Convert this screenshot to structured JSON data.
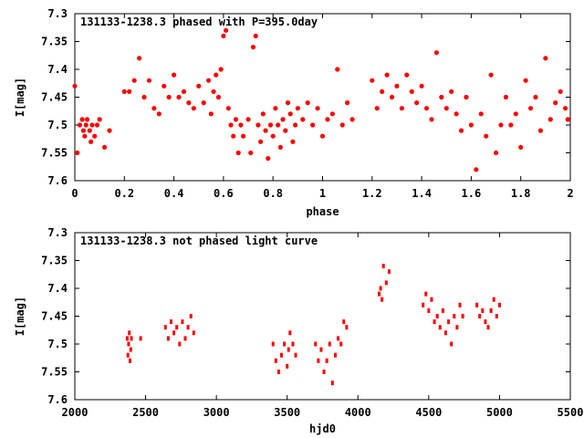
{
  "chart_data": [
    {
      "type": "scatter",
      "title": "131133-1238.3 phased with P=395.0day",
      "xlabel": "phase",
      "ylabel": "I[mag]",
      "xlim": [
        0,
        2
      ],
      "ylim": [
        7.3,
        7.6
      ],
      "y_inverted": true,
      "xticks": [
        "0",
        "0.2",
        "0.4",
        "0.6",
        "0.8",
        "1",
        "1.2",
        "1.4",
        "1.6",
        "1.8",
        "2"
      ],
      "yticks": [
        "7.3",
        "7.35",
        "7.4",
        "7.45",
        "7.5",
        "7.55",
        "7.6"
      ],
      "marker_color": "#ff0000",
      "series": [
        {
          "points": [
            [
              0.0,
              7.43
            ],
            [
              0.01,
              7.55
            ],
            [
              0.02,
              7.5
            ],
            [
              0.03,
              7.49
            ],
            [
              0.035,
              7.51
            ],
            [
              0.04,
              7.52
            ],
            [
              0.045,
              7.5
            ],
            [
              0.05,
              7.49
            ],
            [
              0.06,
              7.51
            ],
            [
              0.065,
              7.53
            ],
            [
              0.07,
              7.5
            ],
            [
              0.08,
              7.52
            ],
            [
              0.09,
              7.5
            ],
            [
              0.1,
              7.49
            ],
            [
              0.12,
              7.54
            ],
            [
              0.14,
              7.51
            ],
            [
              0.2,
              7.44
            ],
            [
              0.22,
              7.44
            ],
            [
              0.24,
              7.42
            ],
            [
              0.26,
              7.38
            ],
            [
              0.28,
              7.45
            ],
            [
              0.3,
              7.42
            ],
            [
              0.32,
              7.47
            ],
            [
              0.34,
              7.48
            ],
            [
              0.36,
              7.43
            ],
            [
              0.38,
              7.45
            ],
            [
              0.4,
              7.41
            ],
            [
              0.42,
              7.45
            ],
            [
              0.44,
              7.44
            ],
            [
              0.46,
              7.46
            ],
            [
              0.48,
              7.47
            ],
            [
              0.5,
              7.43
            ],
            [
              0.52,
              7.46
            ],
            [
              0.54,
              7.42
            ],
            [
              0.55,
              7.48
            ],
            [
              0.56,
              7.44
            ],
            [
              0.57,
              7.41
            ],
            [
              0.58,
              7.45
            ],
            [
              0.59,
              7.4
            ],
            [
              0.6,
              7.34
            ],
            [
              0.61,
              7.33
            ],
            [
              0.62,
              7.47
            ],
            [
              0.63,
              7.5
            ],
            [
              0.64,
              7.52
            ],
            [
              0.65,
              7.49
            ],
            [
              0.66,
              7.55
            ],
            [
              0.67,
              7.5
            ],
            [
              0.68,
              7.52
            ],
            [
              0.7,
              7.49
            ],
            [
              0.71,
              7.55
            ],
            [
              0.72,
              7.36
            ],
            [
              0.73,
              7.34
            ],
            [
              0.74,
              7.5
            ],
            [
              0.75,
              7.53
            ],
            [
              0.76,
              7.48
            ],
            [
              0.77,
              7.51
            ],
            [
              0.78,
              7.56
            ],
            [
              0.79,
              7.5
            ],
            [
              0.8,
              7.52
            ],
            [
              0.81,
              7.47
            ],
            [
              0.82,
              7.5
            ],
            [
              0.83,
              7.54
            ],
            [
              0.84,
              7.49
            ],
            [
              0.85,
              7.51
            ],
            [
              0.86,
              7.46
            ],
            [
              0.87,
              7.48
            ],
            [
              0.88,
              7.53
            ],
            [
              0.89,
              7.5
            ],
            [
              0.9,
              7.47
            ],
            [
              0.92,
              7.49
            ],
            [
              0.94,
              7.46
            ],
            [
              0.96,
              7.5
            ],
            [
              0.98,
              7.47
            ],
            [
              1.0,
              7.52
            ],
            [
              1.02,
              7.49
            ],
            [
              1.04,
              7.48
            ],
            [
              1.06,
              7.4
            ],
            [
              1.08,
              7.5
            ],
            [
              1.1,
              7.46
            ],
            [
              1.12,
              7.49
            ],
            [
              1.2,
              7.42
            ],
            [
              1.22,
              7.47
            ],
            [
              1.24,
              7.44
            ],
            [
              1.26,
              7.41
            ],
            [
              1.28,
              7.45
            ],
            [
              1.3,
              7.43
            ],
            [
              1.32,
              7.47
            ],
            [
              1.34,
              7.41
            ],
            [
              1.36,
              7.44
            ],
            [
              1.38,
              7.46
            ],
            [
              1.4,
              7.43
            ],
            [
              1.42,
              7.47
            ],
            [
              1.44,
              7.49
            ],
            [
              1.46,
              7.37
            ],
            [
              1.48,
              7.45
            ],
            [
              1.5,
              7.47
            ],
            [
              1.52,
              7.44
            ],
            [
              1.54,
              7.48
            ],
            [
              1.56,
              7.51
            ],
            [
              1.58,
              7.45
            ],
            [
              1.6,
              7.5
            ],
            [
              1.62,
              7.58
            ],
            [
              1.64,
              7.48
            ],
            [
              1.66,
              7.52
            ],
            [
              1.68,
              7.41
            ],
            [
              1.7,
              7.55
            ],
            [
              1.72,
              7.5
            ],
            [
              1.74,
              7.45
            ],
            [
              1.76,
              7.5
            ],
            [
              1.78,
              7.48
            ],
            [
              1.8,
              7.54
            ],
            [
              1.82,
              7.42
            ],
            [
              1.84,
              7.47
            ],
            [
              1.86,
              7.45
            ],
            [
              1.88,
              7.51
            ],
            [
              1.9,
              7.38
            ],
            [
              1.92,
              7.49
            ],
            [
              1.94,
              7.46
            ],
            [
              1.96,
              7.44
            ],
            [
              1.98,
              7.47
            ],
            [
              1.99,
              7.49
            ]
          ]
        }
      ]
    },
    {
      "type": "scatter",
      "title": "131133-1238.3 not phased light curve",
      "xlabel": "hjd0",
      "ylabel": "I[mag]",
      "xlim": [
        2000,
        5500
      ],
      "ylim": [
        7.3,
        7.6
      ],
      "y_inverted": true,
      "xticks": [
        "2000",
        "2500",
        "3000",
        "3500",
        "4000",
        "4500",
        "5000",
        "5500"
      ],
      "yticks": [
        "7.3",
        "7.35",
        "7.4",
        "7.45",
        "7.5",
        "7.55",
        "7.6"
      ],
      "marker_color": "#ff0000",
      "series": [
        {
          "points": [
            [
              2370,
              7.49
            ],
            [
              2375,
              7.52
            ],
            [
              2380,
              7.5
            ],
            [
              2385,
              7.48
            ],
            [
              2390,
              7.53
            ],
            [
              2395,
              7.51
            ],
            [
              2400,
              7.49
            ],
            [
              2465,
              7.49
            ],
            [
              2640,
              7.47
            ],
            [
              2660,
              7.49
            ],
            [
              2680,
              7.46
            ],
            [
              2700,
              7.48
            ],
            [
              2720,
              7.47
            ],
            [
              2740,
              7.5
            ],
            [
              2760,
              7.46
            ],
            [
              2780,
              7.49
            ],
            [
              2800,
              7.47
            ],
            [
              2820,
              7.45
            ],
            [
              2840,
              7.48
            ],
            [
              3400,
              7.5
            ],
            [
              3420,
              7.53
            ],
            [
              3440,
              7.55
            ],
            [
              3460,
              7.52
            ],
            [
              3480,
              7.5
            ],
            [
              3500,
              7.54
            ],
            [
              3510,
              7.51
            ],
            [
              3520,
              7.48
            ],
            [
              3540,
              7.5
            ],
            [
              3560,
              7.52
            ],
            [
              3700,
              7.5
            ],
            [
              3720,
              7.53
            ],
            [
              3740,
              7.51
            ],
            [
              3760,
              7.55
            ],
            [
              3780,
              7.53
            ],
            [
              3800,
              7.5
            ],
            [
              3820,
              7.57
            ],
            [
              3840,
              7.52
            ],
            [
              3860,
              7.49
            ],
            [
              3880,
              7.5
            ],
            [
              3900,
              7.46
            ],
            [
              3920,
              7.47
            ],
            [
              4150,
              7.41
            ],
            [
              4160,
              7.4
            ],
            [
              4170,
              7.42
            ],
            [
              4180,
              7.36
            ],
            [
              4200,
              7.39
            ],
            [
              4220,
              7.37
            ],
            [
              4460,
              7.43
            ],
            [
              4480,
              7.41
            ],
            [
              4500,
              7.44
            ],
            [
              4520,
              7.42
            ],
            [
              4540,
              7.46
            ],
            [
              4560,
              7.45
            ],
            [
              4580,
              7.47
            ],
            [
              4600,
              7.44
            ],
            [
              4620,
              7.48
            ],
            [
              4640,
              7.46
            ],
            [
              4660,
              7.5
            ],
            [
              4680,
              7.45
            ],
            [
              4700,
              7.47
            ],
            [
              4720,
              7.43
            ],
            [
              4740,
              7.45
            ],
            [
              4840,
              7.43
            ],
            [
              4860,
              7.45
            ],
            [
              4880,
              7.44
            ],
            [
              4900,
              7.46
            ],
            [
              4920,
              7.47
            ],
            [
              4940,
              7.44
            ],
            [
              4960,
              7.42
            ],
            [
              4980,
              7.45
            ],
            [
              5000,
              7.43
            ]
          ]
        }
      ]
    }
  ]
}
